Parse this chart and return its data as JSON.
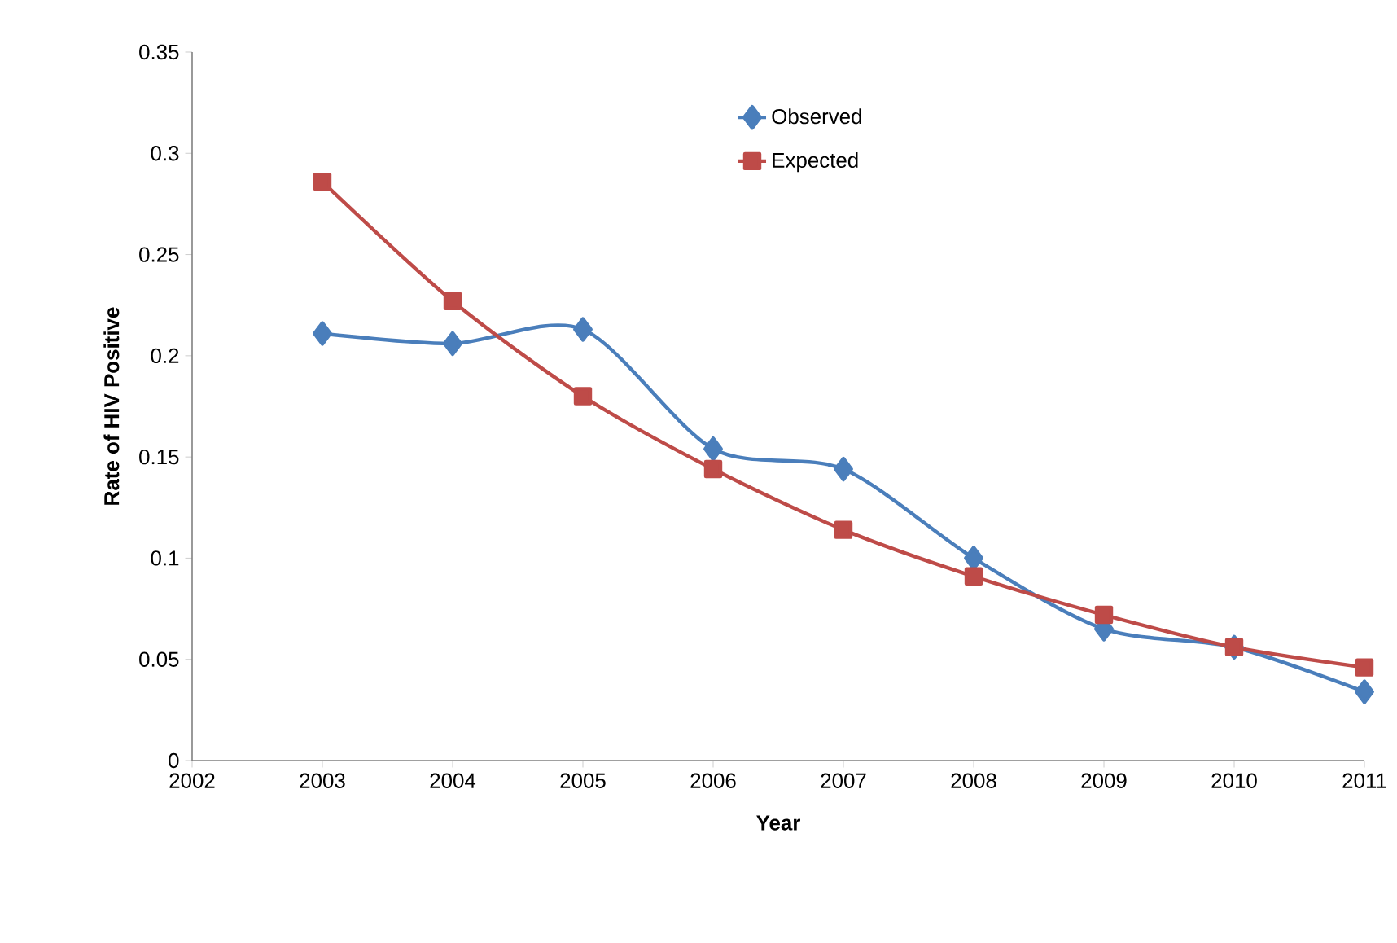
{
  "chart_data": {
    "type": "line",
    "xlabel": "Year",
    "ylabel": "Rate of HIV Positive",
    "x": [
      2003,
      2004,
      2005,
      2006,
      2007,
      2008,
      2009,
      2010,
      2011
    ],
    "series": [
      {
        "name": "Observed",
        "color": "#4a7ebb",
        "marker": "diamond",
        "values": [
          0.211,
          0.206,
          0.213,
          0.154,
          0.144,
          0.1,
          0.065,
          0.056,
          0.034
        ]
      },
      {
        "name": "Expected",
        "color": "#be4b48",
        "marker": "square",
        "values": [
          0.286,
          0.227,
          0.18,
          0.144,
          0.114,
          0.091,
          0.072,
          0.056,
          0.046
        ]
      }
    ],
    "xlim": [
      2002,
      2011
    ],
    "xticks": [
      2002,
      2003,
      2004,
      2005,
      2006,
      2007,
      2008,
      2009,
      2010,
      2011
    ],
    "ylim": [
      0,
      0.35
    ],
    "yticks": [
      0,
      0.05,
      0.1,
      0.15,
      0.2,
      0.25,
      0.3,
      0.35
    ],
    "legend": "top",
    "grid": false
  }
}
